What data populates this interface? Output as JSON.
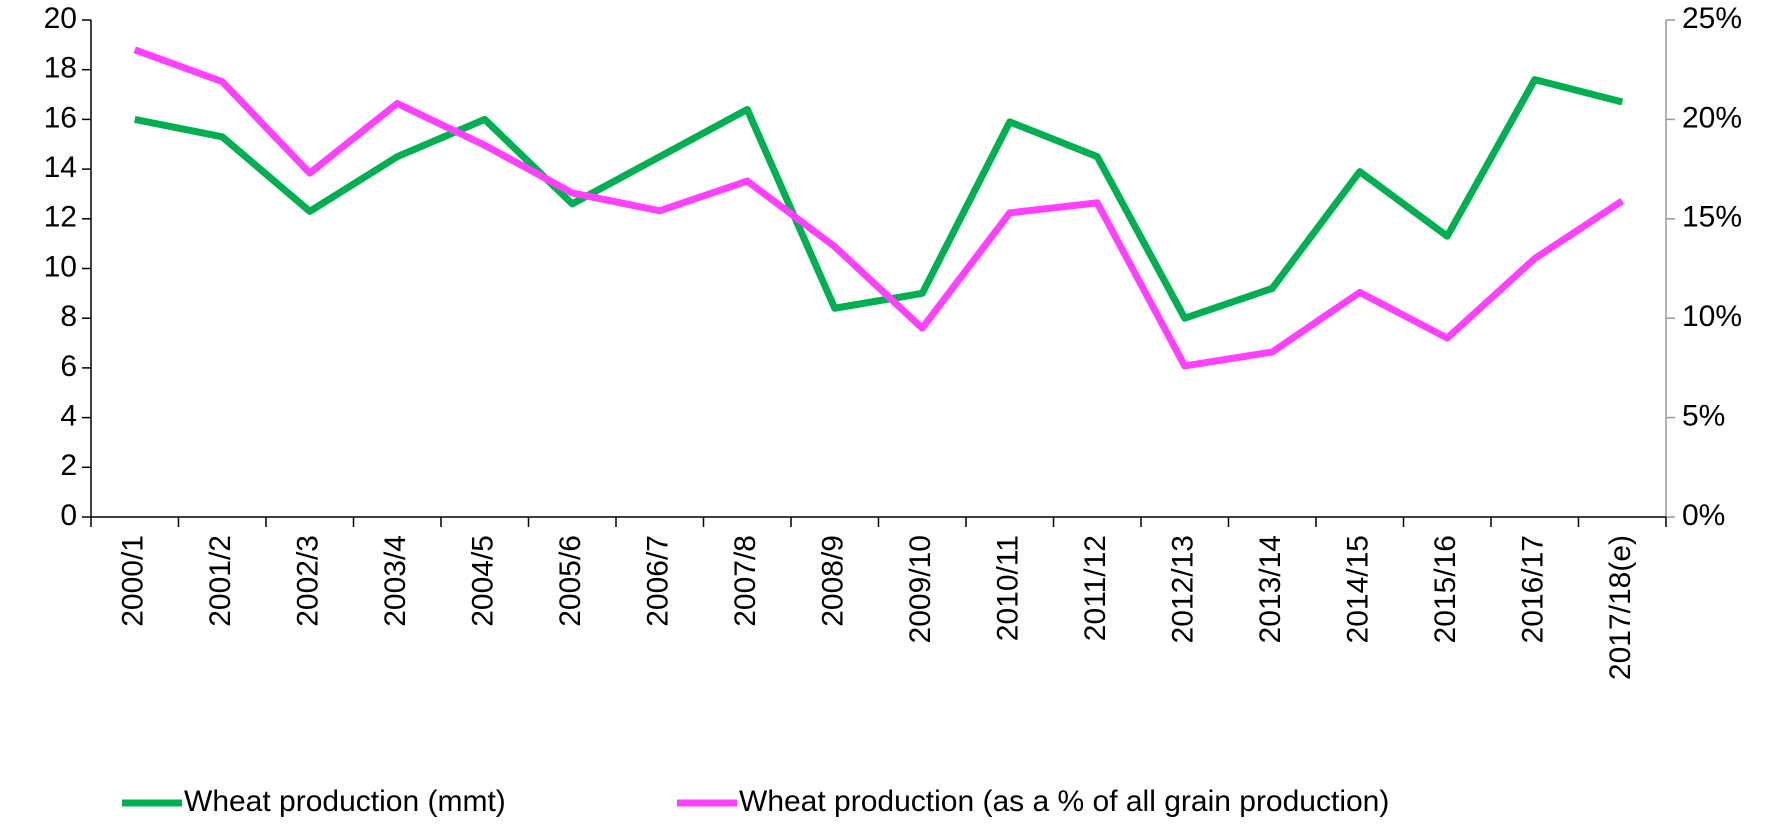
{
  "chart_data": {
    "type": "line",
    "categories": [
      "2000/1",
      "2001/2",
      "2002/3",
      "2003/4",
      "2004/5",
      "2005/6",
      "2006/7",
      "2007/8",
      "2008/9",
      "2009/10",
      "2010/11",
      "2011/12",
      "2012/13",
      "2013/14",
      "2014/15",
      "2015/16",
      "2016/17",
      "2017/18(e)"
    ],
    "series": [
      {
        "name": "Wheat production (mmt)",
        "color": "#00b050",
        "values": [
          16,
          15.3,
          12.3,
          14.5,
          16,
          12.6,
          14.5,
          16.4,
          8.4,
          9,
          15.9,
          14.5,
          8,
          9.2,
          13.9,
          11.3,
          17.6,
          16.7
        ]
      },
      {
        "name": "Wheat production (as a % of all grain production)",
        "color": "#ff40ff",
        "axis": "y2",
        "values": [
          23.5,
          21.9,
          17.3,
          20.8,
          18.7,
          16.3,
          15.4,
          16.9,
          13.6,
          9.5,
          15.3,
          15.8,
          7.6,
          8.3,
          11.3,
          9.0,
          13.0,
          15.9
        ]
      }
    ],
    "ylim": [
      0,
      20
    ],
    "yticks": [
      0,
      2,
      4,
      6,
      8,
      10,
      12,
      14,
      16,
      18,
      20
    ],
    "y2lim": [
      0,
      25
    ],
    "y2ticks": [
      {
        "value": 0,
        "label": "0%"
      },
      {
        "value": 5,
        "label": "5%"
      },
      {
        "value": 10,
        "label": "10%"
      },
      {
        "value": 15,
        "label": "15%"
      },
      {
        "value": 20,
        "label": "20%"
      },
      {
        "value": 25,
        "label": "25%"
      }
    ],
    "legend": "bottom",
    "grid": false
  }
}
